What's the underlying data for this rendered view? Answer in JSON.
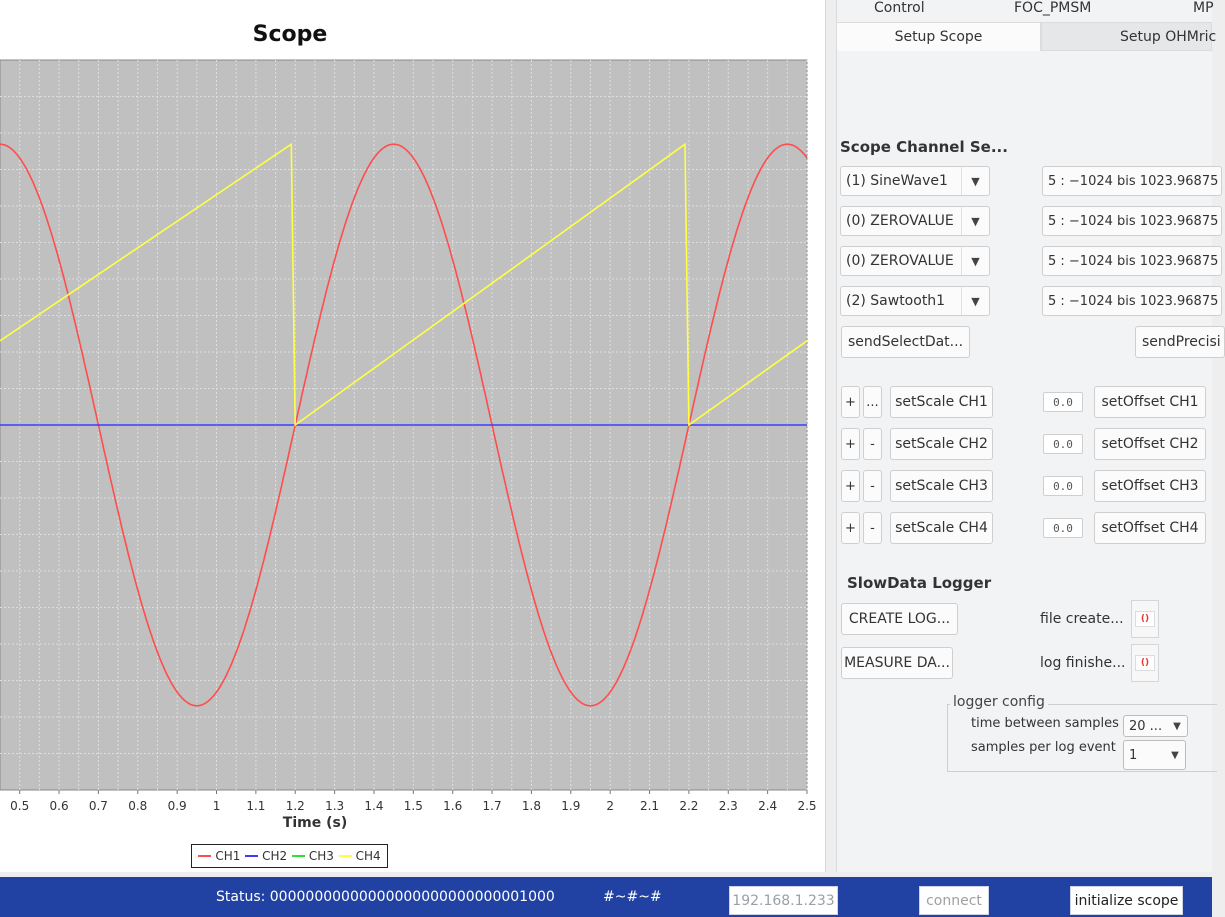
{
  "scope": {
    "title": "Scope",
    "x_axis_label": "Time (s)",
    "legend": [
      {
        "name": "CH1",
        "color": "#ff4d4d"
      },
      {
        "name": "CH2",
        "color": "#3c3cff"
      },
      {
        "name": "CH3",
        "color": "#33dd33"
      },
      {
        "name": "CH4",
        "color": "#ffff44"
      }
    ]
  },
  "chart_data": {
    "type": "line",
    "title": "Scope",
    "xlabel": "Time (s)",
    "ylabel": "",
    "xlim": [
      0.45,
      2.5
    ],
    "x_ticks": [
      0.5,
      0.6,
      0.7,
      0.8,
      0.9,
      1.0,
      1.1,
      1.2,
      1.3,
      1.4,
      1.5,
      1.6,
      1.7,
      1.8,
      1.9,
      2.0,
      2.1,
      2.2,
      2.3,
      2.4,
      2.5
    ],
    "x_tick_labels": [
      "0.5",
      "0.6",
      "0.7",
      "0.8",
      "0.9",
      "1",
      "1.1",
      "1.2",
      "1.3",
      "1.4",
      "1.5",
      "1.6",
      "1.7",
      "1.8",
      "1.9",
      "2",
      "2.1",
      "2.2",
      "2.3",
      "2.4",
      "2.5"
    ],
    "ylim": [
      -1.3,
      1.3
    ],
    "grid": true,
    "background": "#c0c0c0",
    "legend_position": "bottom",
    "series": [
      {
        "name": "CH1",
        "color": "#ff4d4d",
        "kind": "sine",
        "period": 1.0,
        "amplitude": 1.0,
        "x": [
          0.45,
          0.7,
          0.95,
          1.2,
          1.45,
          1.7,
          1.95,
          2.2,
          2.45
        ],
        "y": [
          1,
          0,
          -1,
          0,
          1,
          0,
          -1,
          0,
          1
        ]
      },
      {
        "name": "CH2",
        "color": "#3c3cff",
        "kind": "flat",
        "x": [
          0.45,
          2.5
        ],
        "y": [
          0,
          0
        ]
      },
      {
        "name": "CH3",
        "color": "#33dd33",
        "kind": "hidden",
        "x": [],
        "y": []
      },
      {
        "name": "CH4",
        "color": "#ffff44",
        "kind": "sawtooth",
        "x": [
          0.45,
          1.19,
          1.19,
          1.2,
          2.19,
          2.19,
          2.2,
          2.5
        ],
        "y": [
          0.3,
          1.0,
          1.0,
          0,
          1.0,
          1.0,
          0,
          0.3
        ]
      }
    ]
  },
  "tabs": {
    "top": [
      "Control",
      "FOC_PMSM",
      "MP"
    ],
    "sub": [
      "Setup Scope",
      "Setup OHMric"
    ]
  },
  "channel_select": {
    "title": "Scope Channel Se...",
    "channels": [
      {
        "signal": "(1) SineWave1",
        "range": "5 :  −1024  bis 1023.96875"
      },
      {
        "signal": "(0) ZEROVALUE",
        "range": "5 :  −1024  bis 1023.96875"
      },
      {
        "signal": "(0) ZEROVALUE",
        "range": "5 :  −1024  bis 1023.96875"
      },
      {
        "signal": "(2) Sawtooth1",
        "range": "5 :  −1024  bis 1023.96875"
      }
    ],
    "send_select_label": "sendSelectDat...",
    "send_precision_label": "sendPrecisi"
  },
  "scale_rows": [
    {
      "plus": "+",
      "minus": "...",
      "scale": "setScale CH1",
      "value": "0.0",
      "offset": "setOffset CH1"
    },
    {
      "plus": "+",
      "minus": "-",
      "scale": "setScale CH2",
      "value": "0.0",
      "offset": "setOffset CH2"
    },
    {
      "plus": "+",
      "minus": "-",
      "scale": "setScale CH3",
      "value": "0.0",
      "offset": "setOffset CH3"
    },
    {
      "plus": "+",
      "minus": "-",
      "scale": "setScale CH4",
      "value": "0.0",
      "offset": "setOffset CH4"
    }
  ],
  "logger": {
    "title": "SlowData Logger",
    "create_label": "CREATE LOG...",
    "measure_label": "MEASURE DA...",
    "file_created_label": "file create...",
    "log_finished_label": "log finishe...",
    "led_symbol": "()",
    "led_color": "#e53935",
    "config_title": "logger config",
    "time_between_label": "time between samples",
    "time_between_value": "20 ...",
    "samples_per_label": "samples per log event",
    "samples_per_value": "1"
  },
  "status_bar": {
    "status": "Status: 00000000000000000000000000001000",
    "marker": "#~#~#",
    "ip": "192.168.1.233",
    "connect_label": "connect",
    "init_label": "initialize scope",
    "color": "#2142a2"
  }
}
